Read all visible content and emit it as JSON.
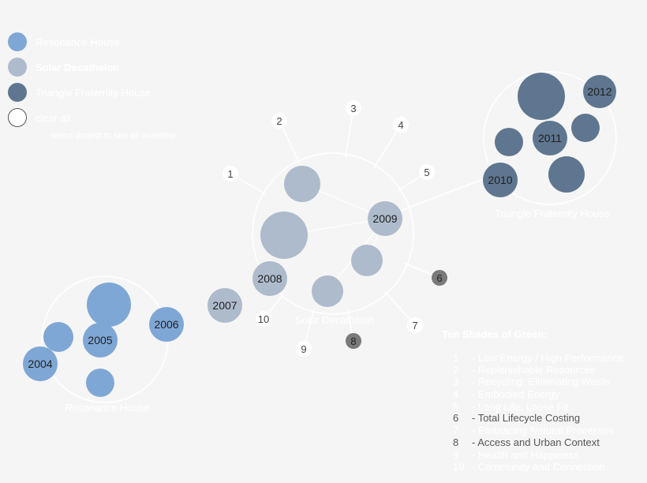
{
  "legend": {
    "items": [
      {
        "label": "Resonance House",
        "color": "#7fa7d6",
        "icon": "filled-circle-icon",
        "bold": false
      },
      {
        "label": "Solar Decathalon",
        "color": "#aebbcc",
        "icon": "filled-circle-icon",
        "bold": true
      },
      {
        "label": "Triangle Fraternity House",
        "color": "#5f7690",
        "icon": "filled-circle-icon",
        "bold": false
      },
      {
        "label": "clear all",
        "color": "#ffffff",
        "icon": "empty-circle-icon",
        "bold": false
      }
    ],
    "subtitle": "select project to see all available"
  },
  "clusters": [
    {
      "label": "Resonance House"
    },
    {
      "label": "Solar Decathalon"
    },
    {
      "label": "Triangle Fraternity House"
    }
  ],
  "years": [
    {
      "label": "2004"
    },
    {
      "label": "2005"
    },
    {
      "label": "2006"
    },
    {
      "label": "2007"
    },
    {
      "label": "2008"
    },
    {
      "label": "2009"
    },
    {
      "label": "2010"
    },
    {
      "label": "2011"
    },
    {
      "label": "2012"
    }
  ],
  "shade_nodes": [
    {
      "label": "1",
      "active": false
    },
    {
      "label": "2",
      "active": false
    },
    {
      "label": "3",
      "active": false
    },
    {
      "label": "4",
      "active": false
    },
    {
      "label": "5",
      "active": false
    },
    {
      "label": "6",
      "active": true
    },
    {
      "label": "7",
      "active": false
    },
    {
      "label": "8",
      "active": true
    },
    {
      "label": "9",
      "active": false
    },
    {
      "label": "10",
      "active": false
    }
  ],
  "shades": {
    "title": "Ten Shades of Green:",
    "items": [
      {
        "num": "1",
        "text": "- Low Energy / High Performance",
        "active": false
      },
      {
        "num": "2",
        "text": "- Replenishable Resources",
        "active": false
      },
      {
        "num": "3",
        "text": "- Recycling: Eliminating Waste",
        "active": false
      },
      {
        "num": "4",
        "text": "- Embodied Energy",
        "active": false
      },
      {
        "num": "5",
        "text": "- Long Life, Loose Fit",
        "active": false
      },
      {
        "num": "6",
        "text": "- Total Lifecycle Costing",
        "active": true
      },
      {
        "num": "7",
        "text": "- Embracing Natural Processes",
        "active": false
      },
      {
        "num": "8",
        "text": "- Access and Urban Context",
        "active": true
      },
      {
        "num": "9",
        "text": "- Health and Happiness",
        "active": false
      },
      {
        "num": "10",
        "text": "- Community and Connection",
        "active": false
      }
    ]
  },
  "colors": {
    "resonance": "#7fa7d6",
    "solar": "#aebbcc",
    "triangle": "#5f7690",
    "active_shade": "#7a7a7a",
    "background": "#f5f5f5"
  }
}
